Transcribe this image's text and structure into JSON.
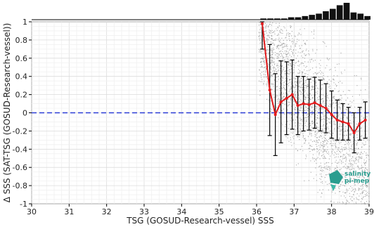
{
  "chart_data": {
    "type": "line",
    "xlabel": "TSG (GOSUD-Research-vessel) SSS",
    "ylabel": "Δ SSS (SAT-TSG (GOSUD-Research-vessel))",
    "xlim": [
      30,
      39
    ],
    "ylim": [
      -1,
      1
    ],
    "x_ticks": [
      "30",
      "31",
      "32",
      "33",
      "34",
      "35",
      "36",
      "37",
      "38",
      "39"
    ],
    "y_ticks": [
      "1",
      "0.8",
      "0.6",
      "0.4",
      "0.2",
      "0",
      "-0.2",
      "-0.4",
      "-0.6",
      "-0.8",
      "-1"
    ],
    "grid": true,
    "reference_line": {
      "y": 0,
      "color": "#2b3bd6",
      "style": "dashed"
    },
    "series": [
      {
        "color": "#e31a1c",
        "x": [
          36.15,
          36.35,
          36.5,
          36.65,
          36.8,
          36.95,
          37.1,
          37.25,
          37.4,
          37.55,
          37.7,
          37.85,
          38.0,
          38.15,
          38.3,
          38.45,
          38.6,
          38.75,
          38.9
        ],
        "y": [
          0.98,
          0.25,
          -0.02,
          0.12,
          0.16,
          0.2,
          0.08,
          0.1,
          0.09,
          0.11,
          0.08,
          0.05,
          -0.02,
          -0.08,
          -0.1,
          -0.12,
          -0.22,
          -0.12,
          -0.08
        ],
        "err": [
          0.28,
          0.5,
          0.45,
          0.45,
          0.4,
          0.38,
          0.32,
          0.3,
          0.28,
          0.28,
          0.28,
          0.27,
          0.26,
          0.22,
          0.2,
          0.18,
          0.22,
          0.18,
          0.2
        ]
      }
    ],
    "histogram": {
      "color": "#111111",
      "values": [
        1,
        1,
        1,
        1,
        2,
        2,
        3,
        4,
        5,
        7,
        9,
        12,
        14,
        6,
        5,
        3
      ]
    },
    "scatter_cloud": {
      "color": "#8a8a8a"
    }
  },
  "logo": {
    "line1": "salinity",
    "line2": "pi-mep",
    "color": "#2a9d8f"
  }
}
